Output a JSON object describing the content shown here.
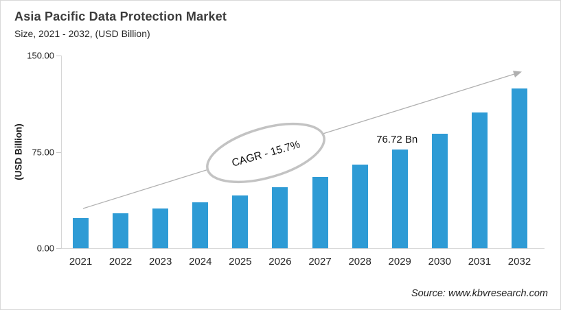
{
  "header": {
    "title": "Asia Pacific Data Protection Market",
    "subtitle": "Size, 2021 - 2032, (USD Billion)"
  },
  "chart_data": {
    "type": "bar",
    "title": "Asia Pacific Data Protection Market Size, 2021 - 2032, (USD Billion)",
    "categories": [
      "2021",
      "2022",
      "2023",
      "2024",
      "2025",
      "2026",
      "2027",
      "2028",
      "2029",
      "2030",
      "2031",
      "2032"
    ],
    "values": [
      23.5,
      27.1,
      31.1,
      35.8,
      41.2,
      47.7,
      55.6,
      64.9,
      76.72,
      89.3,
      105.8,
      124.3
    ],
    "xlabel": "",
    "ylabel": "(USD Billion)",
    "ylim": [
      0,
      150
    ],
    "yticks": [
      {
        "value": 0,
        "label": "0.00"
      },
      {
        "value": 75,
        "label": "75.00"
      },
      {
        "value": 150,
        "label": "150.00"
      }
    ],
    "grid": false,
    "legend": "none",
    "bar_color": "#2E9BD5",
    "annotations": {
      "cagr_label": "CAGR - 15.7%",
      "point_label": {
        "category": "2029",
        "text": "76.72 Bn"
      },
      "trend_arrow": "upward"
    }
  },
  "footer": {
    "source": "Source: www.kbvresearch.com"
  },
  "colors": {
    "bar": "#2E9BD5",
    "axis": "#d6d6d6",
    "arrow": "#b0b0b0",
    "ellipse_stroke": "#c3c3c3"
  }
}
